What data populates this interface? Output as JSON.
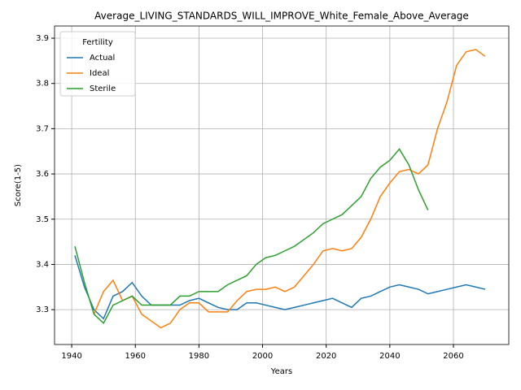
{
  "chart_data": {
    "type": "line",
    "title": "Average_LIVING_STANDARDS_WILL_IMPROVE_White_Female_Above_Average",
    "xlabel": "Years",
    "ylabel": "Score(1-5)",
    "legend_title": "Fertility",
    "legend": "upper left",
    "grid": true,
    "xlim": [
      1934.6,
      2077.4
    ],
    "ylim": [
      3.223,
      3.927
    ],
    "xticks": [
      1940,
      1960,
      1980,
      2000,
      2020,
      2040,
      2060
    ],
    "yticks": [
      3.3,
      3.4,
      3.5,
      3.6,
      3.7,
      3.8,
      3.9
    ],
    "x": [
      1941,
      1944,
      1947,
      1950,
      1953,
      1956,
      1959,
      1962,
      1965,
      1968,
      1971,
      1974,
      1977,
      1980,
      1983,
      1986,
      1989,
      1992,
      1995,
      1998,
      2001,
      2004,
      2007,
      2010,
      2013,
      2016,
      2019,
      2022,
      2025,
      2028,
      2031,
      2034,
      2037,
      2040,
      2043,
      2046,
      2049,
      2052,
      2055,
      2058,
      2061,
      2064,
      2067,
      2070
    ],
    "series": [
      {
        "name": "Actual",
        "color": "#1f77b4",
        "values": [
          3.42,
          3.35,
          3.3,
          3.28,
          3.33,
          3.34,
          3.36,
          3.33,
          3.31,
          3.31,
          3.31,
          3.31,
          3.32,
          3.325,
          3.315,
          3.305,
          3.3,
          3.3,
          3.315,
          3.315,
          3.31,
          3.305,
          3.3,
          3.305,
          3.31,
          3.315,
          3.32,
          3.325,
          3.315,
          3.305,
          3.325,
          3.33,
          3.34,
          3.35,
          3.355,
          3.35,
          3.345,
          3.335,
          3.34,
          3.345,
          3.35,
          3.355,
          3.35,
          3.345
        ]
      },
      {
        "name": "Ideal",
        "color": "#ff7f0e",
        "values": [
          null,
          null,
          3.29,
          3.34,
          3.365,
          3.32,
          3.33,
          3.29,
          3.275,
          3.26,
          3.27,
          3.3,
          3.315,
          3.315,
          3.295,
          3.295,
          3.295,
          3.32,
          3.34,
          3.345,
          3.345,
          3.35,
          3.34,
          3.35,
          3.375,
          3.4,
          3.43,
          3.435,
          3.43,
          3.435,
          3.46,
          3.5,
          3.55,
          3.58,
          3.605,
          3.61,
          3.6,
          3.62,
          3.7,
          3.76,
          3.84,
          3.87,
          3.875,
          3.86
        ]
      },
      {
        "name": "Sterile",
        "color": "#2ca02c",
        "values": [
          3.44,
          3.36,
          3.29,
          3.27,
          3.31,
          3.32,
          3.33,
          3.31,
          3.31,
          3.31,
          3.31,
          3.33,
          3.33,
          3.34,
          3.34,
          3.34,
          3.355,
          3.365,
          3.375,
          3.4,
          3.415,
          3.42,
          3.43,
          3.44,
          3.455,
          3.47,
          3.49,
          3.5,
          3.51,
          3.53,
          3.55,
          3.59,
          3.615,
          3.63,
          3.655,
          3.62,
          3.565,
          3.52,
          null,
          null,
          null,
          null,
          null,
          null
        ]
      }
    ]
  }
}
